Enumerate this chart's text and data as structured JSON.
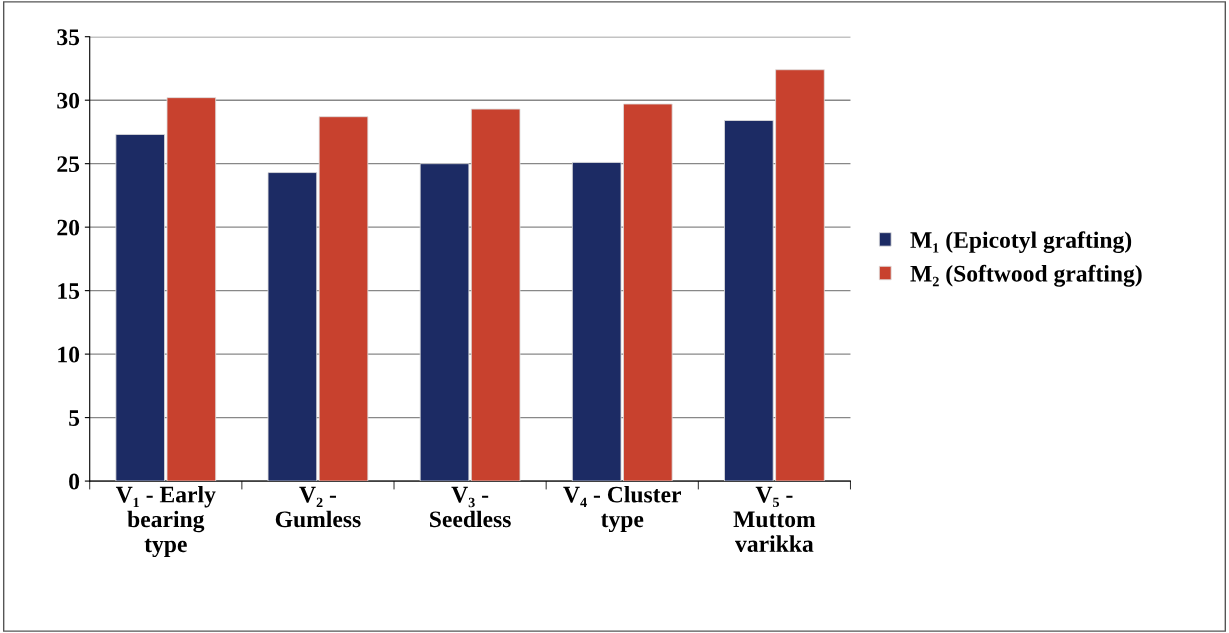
{
  "chart_data": {
    "type": "bar",
    "categories": [
      "V₁ - Early\nbearing\ntype",
      "V₂ -\nGumless",
      "V₃ -\nSeedless",
      "V₄ - Cluster\ntype",
      "V₅ -\nMuttom\nvarikka"
    ],
    "series": [
      {
        "name": "M₁ (Epicotyl grafting)",
        "color": "#1c2b64",
        "values": [
          27.3,
          24.3,
          25.0,
          25.1,
          28.4
        ]
      },
      {
        "name": "M₂ (Softwood grafting)",
        "color": "#c8412e",
        "values": [
          30.2,
          28.7,
          29.3,
          29.7,
          32.4
        ]
      }
    ],
    "ylim": [
      0,
      35
    ],
    "yticks": [
      0,
      5,
      10,
      15,
      20,
      25,
      30,
      35
    ],
    "grid": "y",
    "legend": "right"
  }
}
